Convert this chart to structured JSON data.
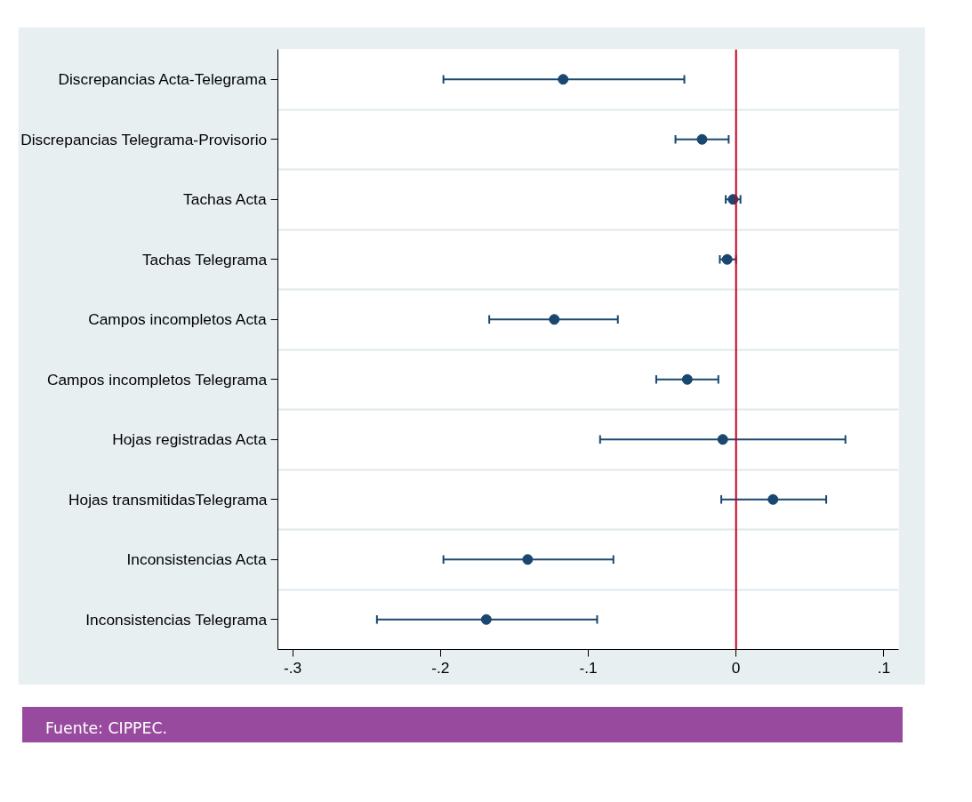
{
  "chart_data": {
    "type": "scatter",
    "orientation": "horizontal",
    "categories": [
      "Discrepancias Acta-Telegrama",
      "Discrepancias Telegrama-Provisorio",
      "Tachas Acta",
      "Tachas Telegrama",
      "Campos incompletos Acta",
      "Campos incompletos Telegrama",
      "Hojas registradas Acta",
      "Hojas transmitidasTelegrama",
      "Inconsistencias Acta",
      "Inconsistencias Telegrama"
    ],
    "values": [
      -0.117,
      -0.023,
      -0.002,
      -0.006,
      -0.123,
      -0.033,
      -0.009,
      0.025,
      -0.141,
      -0.169
    ],
    "errors": [
      [
        -0.198,
        -0.035
      ],
      [
        -0.041,
        -0.005
      ],
      [
        -0.007,
        0.003
      ],
      [
        -0.011,
        0.0
      ],
      [
        -0.167,
        -0.08
      ],
      [
        -0.054,
        -0.012
      ],
      [
        -0.092,
        0.074
      ],
      [
        -0.01,
        0.061
      ],
      [
        -0.198,
        -0.083
      ],
      [
        -0.243,
        -0.094
      ]
    ],
    "color": "#1a476f",
    "marker": "circle",
    "xlim": [
      -0.31,
      0.11
    ],
    "xticks": [
      {
        "value": -0.3,
        "label": "-.3"
      },
      {
        "value": -0.2,
        "label": "-.2"
      },
      {
        "value": -0.1,
        "label": "-.1"
      },
      0,
      {
        "value": 0.1,
        "label": ".1"
      }
    ],
    "ref_lines": [
      {
        "axis": "x",
        "value": 0,
        "label": null,
        "color": "#c00020"
      }
    ],
    "grid": "y",
    "annotations": [
      "Fuente: CIPPEC."
    ]
  }
}
